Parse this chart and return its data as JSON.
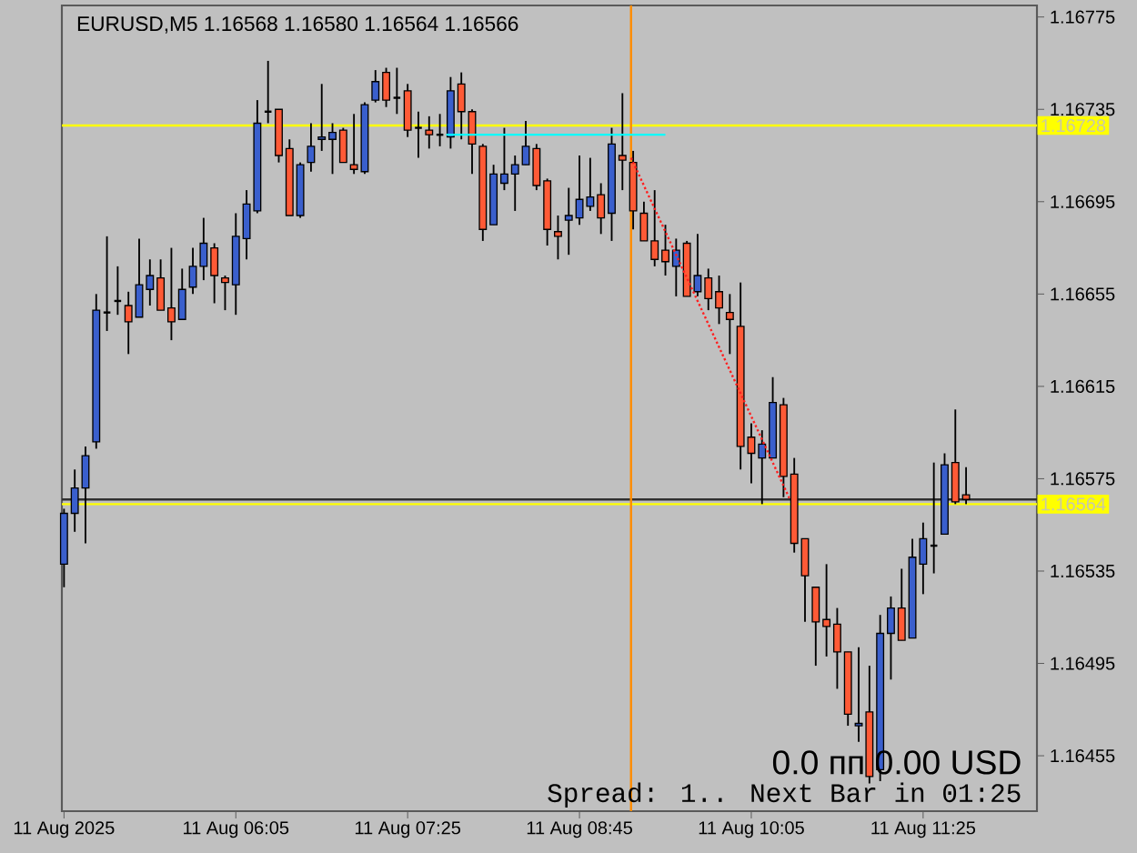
{
  "chart_data": {
    "type": "candlestick",
    "title": "EURUSD,M5 1.16568 1.16580 1.16564 1.16566",
    "x": [
      "2025-08-11T04:45",
      "2025-08-11T04:50",
      "2025-08-11T04:55",
      "2025-08-11T05:00",
      "2025-08-11T05:05",
      "2025-08-11T05:10",
      "2025-08-11T05:15",
      "2025-08-11T05:20",
      "2025-08-11T05:25",
      "2025-08-11T05:30",
      "2025-08-11T05:35",
      "2025-08-11T05:40",
      "2025-08-11T05:45",
      "2025-08-11T05:50",
      "2025-08-11T05:55",
      "2025-08-11T06:00",
      "2025-08-11T06:05",
      "2025-08-11T06:10",
      "2025-08-11T06:15",
      "2025-08-11T06:20",
      "2025-08-11T06:25",
      "2025-08-11T06:30",
      "2025-08-11T06:35",
      "2025-08-11T06:40",
      "2025-08-11T06:45",
      "2025-08-11T06:50",
      "2025-08-11T06:55",
      "2025-08-11T07:00",
      "2025-08-11T07:05",
      "2025-08-11T07:10",
      "2025-08-11T07:15",
      "2025-08-11T07:20",
      "2025-08-11T07:25",
      "2025-08-11T07:30",
      "2025-08-11T07:35",
      "2025-08-11T07:40",
      "2025-08-11T07:45",
      "2025-08-11T07:50",
      "2025-08-11T07:55",
      "2025-08-11T08:00",
      "2025-08-11T08:05",
      "2025-08-11T08:10",
      "2025-08-11T08:15",
      "2025-08-11T08:20",
      "2025-08-11T08:25",
      "2025-08-11T08:30",
      "2025-08-11T08:35",
      "2025-08-11T08:40",
      "2025-08-11T08:45",
      "2025-08-11T08:50",
      "2025-08-11T08:55",
      "2025-08-11T09:00",
      "2025-08-11T09:05",
      "2025-08-11T09:10",
      "2025-08-11T09:15",
      "2025-08-11T09:20",
      "2025-08-11T09:25",
      "2025-08-11T09:30",
      "2025-08-11T09:35",
      "2025-08-11T09:40",
      "2025-08-11T09:45",
      "2025-08-11T09:50",
      "2025-08-11T09:55",
      "2025-08-11T10:00",
      "2025-08-11T10:05",
      "2025-08-11T10:10",
      "2025-08-11T10:15",
      "2025-08-11T10:20",
      "2025-08-11T10:25",
      "2025-08-11T10:30",
      "2025-08-11T10:35",
      "2025-08-11T10:40",
      "2025-08-11T10:45",
      "2025-08-11T10:50",
      "2025-08-11T10:55",
      "2025-08-11T11:00",
      "2025-08-11T11:05",
      "2025-08-11T11:10",
      "2025-08-11T11:15",
      "2025-08-11T11:20",
      "2025-08-11T11:25",
      "2025-08-11T11:30",
      "2025-08-11T11:35",
      "2025-08-11T11:40",
      "2025-08-11T11:45"
    ],
    "ohlc": [
      [
        1.16538,
        1.16562,
        1.16528,
        1.1656
      ],
      [
        1.1656,
        1.16579,
        1.16552,
        1.16571
      ],
      [
        1.16571,
        1.16589,
        1.16547,
        1.16585
      ],
      [
        1.16591,
        1.16655,
        1.16588,
        1.16648
      ],
      [
        1.16647,
        1.1668,
        1.16639,
        1.16647
      ],
      [
        1.16652,
        1.16667,
        1.16646,
        1.16652
      ],
      [
        1.1665,
        1.16656,
        1.16629,
        1.16643
      ],
      [
        1.16645,
        1.16679,
        1.16645,
        1.16659
      ],
      [
        1.16657,
        1.1667,
        1.1665,
        1.16663
      ],
      [
        1.16662,
        1.1667,
        1.16648,
        1.16648
      ],
      [
        1.16649,
        1.16675,
        1.16635,
        1.16643
      ],
      [
        1.16644,
        1.16666,
        1.16644,
        1.16657
      ],
      [
        1.16658,
        1.16675,
        1.16655,
        1.16667
      ],
      [
        1.16667,
        1.16688,
        1.16661,
        1.16677
      ],
      [
        1.16675,
        1.16677,
        1.16651,
        1.16663
      ],
      [
        1.16662,
        1.16663,
        1.16648,
        1.1666
      ],
      [
        1.16659,
        1.1669,
        1.16646,
        1.1668
      ],
      [
        1.16679,
        1.167,
        1.1667,
        1.16694
      ],
      [
        1.16691,
        1.16739,
        1.1669,
        1.16729
      ],
      [
        1.16734,
        1.16756,
        1.16729,
        1.16734
      ],
      [
        1.16735,
        1.16735,
        1.16712,
        1.16715
      ],
      [
        1.16718,
        1.16722,
        1.16689,
        1.16689
      ],
      [
        1.16689,
        1.16712,
        1.16688,
        1.16711
      ],
      [
        1.16712,
        1.16729,
        1.16708,
        1.16719
      ],
      [
        1.16722,
        1.16746,
        1.16717,
        1.16723
      ],
      [
        1.16722,
        1.16729,
        1.16707,
        1.16725
      ],
      [
        1.16726,
        1.16727,
        1.16712,
        1.16712
      ],
      [
        1.16711,
        1.16733,
        1.16707,
        1.16709
      ],
      [
        1.16708,
        1.16738,
        1.16707,
        1.16737
      ],
      [
        1.16739,
        1.16752,
        1.16738,
        1.16747
      ],
      [
        1.16751,
        1.16753,
        1.16736,
        1.16739
      ],
      [
        1.1674,
        1.16753,
        1.16733,
        1.1674
      ],
      [
        1.16743,
        1.16746,
        1.16723,
        1.16726
      ],
      [
        1.16727,
        1.16734,
        1.16714,
        1.16727
      ],
      [
        1.16726,
        1.16732,
        1.16718,
        1.16724
      ],
      [
        1.16724,
        1.16733,
        1.16719,
        1.16724
      ],
      [
        1.16723,
        1.16749,
        1.16718,
        1.16743
      ],
      [
        1.16746,
        1.16751,
        1.16722,
        1.16734
      ],
      [
        1.16734,
        1.16735,
        1.16707,
        1.1672
      ],
      [
        1.16719,
        1.1672,
        1.16678,
        1.16683
      ],
      [
        1.16685,
        1.16711,
        1.16685,
        1.16707
      ],
      [
        1.16703,
        1.16727,
        1.167,
        1.16707
      ],
      [
        1.16707,
        1.16715,
        1.16691,
        1.16711
      ],
      [
        1.16711,
        1.1673,
        1.16711,
        1.16719
      ],
      [
        1.16718,
        1.1672,
        1.167,
        1.16702
      ],
      [
        1.16704,
        1.16705,
        1.16676,
        1.16683
      ],
      [
        1.16682,
        1.16689,
        1.1667,
        1.1668
      ],
      [
        1.16687,
        1.16701,
        1.16672,
        1.16689
      ],
      [
        1.16688,
        1.16715,
        1.16685,
        1.16696
      ],
      [
        1.16693,
        1.16714,
        1.16691,
        1.16697
      ],
      [
        1.16698,
        1.16703,
        1.16681,
        1.16688
      ],
      [
        1.1669,
        1.16727,
        1.16678,
        1.1672
      ],
      [
        1.16715,
        1.16742,
        1.167,
        1.16713
      ],
      [
        1.16712,
        1.16717,
        1.16683,
        1.16691
      ],
      [
        1.1669,
        1.16695,
        1.16678,
        1.16678
      ],
      [
        1.16678,
        1.167,
        1.16667,
        1.1667
      ],
      [
        1.16674,
        1.16685,
        1.16663,
        1.16669
      ],
      [
        1.16667,
        1.16679,
        1.16654,
        1.16674
      ],
      [
        1.16677,
        1.16678,
        1.16654,
        1.16654
      ],
      [
        1.16656,
        1.16681,
        1.16654,
        1.16663
      ],
      [
        1.16662,
        1.16666,
        1.16648,
        1.16653
      ],
      [
        1.16656,
        1.16663,
        1.16642,
        1.16649
      ],
      [
        1.16647,
        1.16655,
        1.16629,
        1.16644
      ],
      [
        1.16641,
        1.1666,
        1.16579,
        1.16589
      ],
      [
        1.16593,
        1.16599,
        1.16573,
        1.16586
      ],
      [
        1.16584,
        1.16596,
        1.16564,
        1.1659
      ],
      [
        1.16584,
        1.16619,
        1.16584,
        1.16608
      ],
      [
        1.16607,
        1.1661,
        1.16567,
        1.16576
      ],
      [
        1.16577,
        1.16584,
        1.16543,
        1.16547
      ],
      [
        1.16549,
        1.16549,
        1.16513,
        1.16533
      ],
      [
        1.16528,
        1.16528,
        1.16494,
        1.16513
      ],
      [
        1.16514,
        1.16538,
        1.16498,
        1.16511
      ],
      [
        1.16512,
        1.16519,
        1.16484,
        1.165
      ],
      [
        1.165,
        1.165,
        1.16468,
        1.16473
      ],
      [
        1.16468,
        1.16502,
        1.16461,
        1.16469
      ],
      [
        1.16474,
        1.16494,
        1.16443,
        1.16446
      ],
      [
        1.16449,
        1.16516,
        1.16444,
        1.16508
      ],
      [
        1.16508,
        1.16524,
        1.16488,
        1.16519
      ],
      [
        1.16519,
        1.16536,
        1.16505,
        1.16505
      ],
      [
        1.16506,
        1.16549,
        1.16506,
        1.16541
      ],
      [
        1.16538,
        1.16556,
        1.16525,
        1.16549
      ],
      [
        1.16546,
        1.16582,
        1.16534,
        1.16546
      ],
      [
        1.16551,
        1.16586,
        1.16551,
        1.16581
      ],
      [
        1.16582,
        1.16605,
        1.16564,
        1.16565
      ],
      [
        1.16568,
        1.1658,
        1.16564,
        1.16566
      ]
    ],
    "colors": [
      "#3a5fcd",
      "#3a5fcd",
      "#3a5fcd",
      "#3a5fcd",
      "#000000",
      "#000000",
      "#ff5a36",
      "#3a5fcd",
      "#3a5fcd",
      "#ff5a36",
      "#ff5a36",
      "#3a5fcd",
      "#3a5fcd",
      "#3a5fcd",
      "#ff5a36",
      "#ff5a36",
      "#3a5fcd",
      "#3a5fcd",
      "#3a5fcd",
      "#000000",
      "#ff5a36",
      "#ff5a36",
      "#3a5fcd",
      "#3a5fcd",
      "#3a5fcd",
      "#3a5fcd",
      "#ff5a36",
      "#ff5a36",
      "#3a5fcd",
      "#3a5fcd",
      "#ff5a36",
      "#000000",
      "#ff5a36",
      "#000000",
      "#ff5a36",
      "#000000",
      "#3a5fcd",
      "#ff5a36",
      "#ff5a36",
      "#ff5a36",
      "#3a5fcd",
      "#3a5fcd",
      "#3a5fcd",
      "#3a5fcd",
      "#ff5a36",
      "#ff5a36",
      "#ff5a36",
      "#3a5fcd",
      "#3a5fcd",
      "#3a5fcd",
      "#ff5a36",
      "#3a5fcd",
      "#ff5a36",
      "#ff5a36",
      "#ff5a36",
      "#ff5a36",
      "#ff5a36",
      "#3a5fcd",
      "#ff5a36",
      "#3a5fcd",
      "#ff5a36",
      "#ff5a36",
      "#ff5a36",
      "#ff5a36",
      "#ff5a36",
      "#3a5fcd",
      "#3a5fcd",
      "#ff5a36",
      "#ff5a36",
      "#ff5a36",
      "#ff5a36",
      "#ff5a36",
      "#ff5a36",
      "#ff5a36",
      "#3a5fcd",
      "#ff5a36",
      "#3a5fcd",
      "#3a5fcd",
      "#ff5a36",
      "#3a5fcd",
      "#3a5fcd",
      "#000000",
      "#3a5fcd",
      "#ff5a36",
      "#ff5a36"
    ],
    "series": [
      {
        "type": "line",
        "color": "#00ffff",
        "line_style": "solid",
        "x": [
          "2025-08-11T07:43",
          "2025-08-11T09:25"
        ],
        "values": [
          1.16724,
          1.16724
        ]
      },
      {
        "type": "line",
        "color": "#ff2020",
        "line_style": "dotted",
        "x": [
          "2025-08-11T09:09",
          "2025-08-11T10:23"
        ],
        "values": [
          1.16714,
          1.16566
        ]
      }
    ],
    "xlim": [
      "2025-08-11T04:44",
      "2025-08-11T12:18"
    ],
    "xticks": [
      {
        "value": "2025-08-11T04:45",
        "label": "11 Aug 2025"
      },
      {
        "value": "2025-08-11T06:05",
        "label": "11 Aug 06:05"
      },
      {
        "value": "2025-08-11T07:25",
        "label": "11 Aug 07:25"
      },
      {
        "value": "2025-08-11T08:45",
        "label": "11 Aug 08:45"
      },
      {
        "value": "2025-08-11T10:05",
        "label": "11 Aug 10:05"
      },
      {
        "value": "2025-08-11T11:25",
        "label": "11 Aug 11:25"
      }
    ],
    "ylim": [
      1.16431,
      1.1678
    ],
    "yticks": [
      1.16455,
      1.16495,
      1.16535,
      1.16575,
      1.16615,
      1.16655,
      1.16695,
      1.16735,
      1.16775
    ],
    "ref_lines": [
      {
        "axis": "y",
        "value": 1.16728,
        "label": "1.16728",
        "color": "#ffff00"
      },
      {
        "axis": "y",
        "value": 1.16564,
        "label": "1.16564",
        "color": "#ffff00"
      },
      {
        "axis": "y",
        "value": 1.16566,
        "color": "#303030"
      },
      {
        "axis": "x",
        "value": "2025-08-11T09:09",
        "color": "#ff8c00"
      }
    ],
    "annotations": [
      "0.0 пп 0.00 USD",
      "Spread: 1.. Next Bar in 01:25"
    ]
  }
}
